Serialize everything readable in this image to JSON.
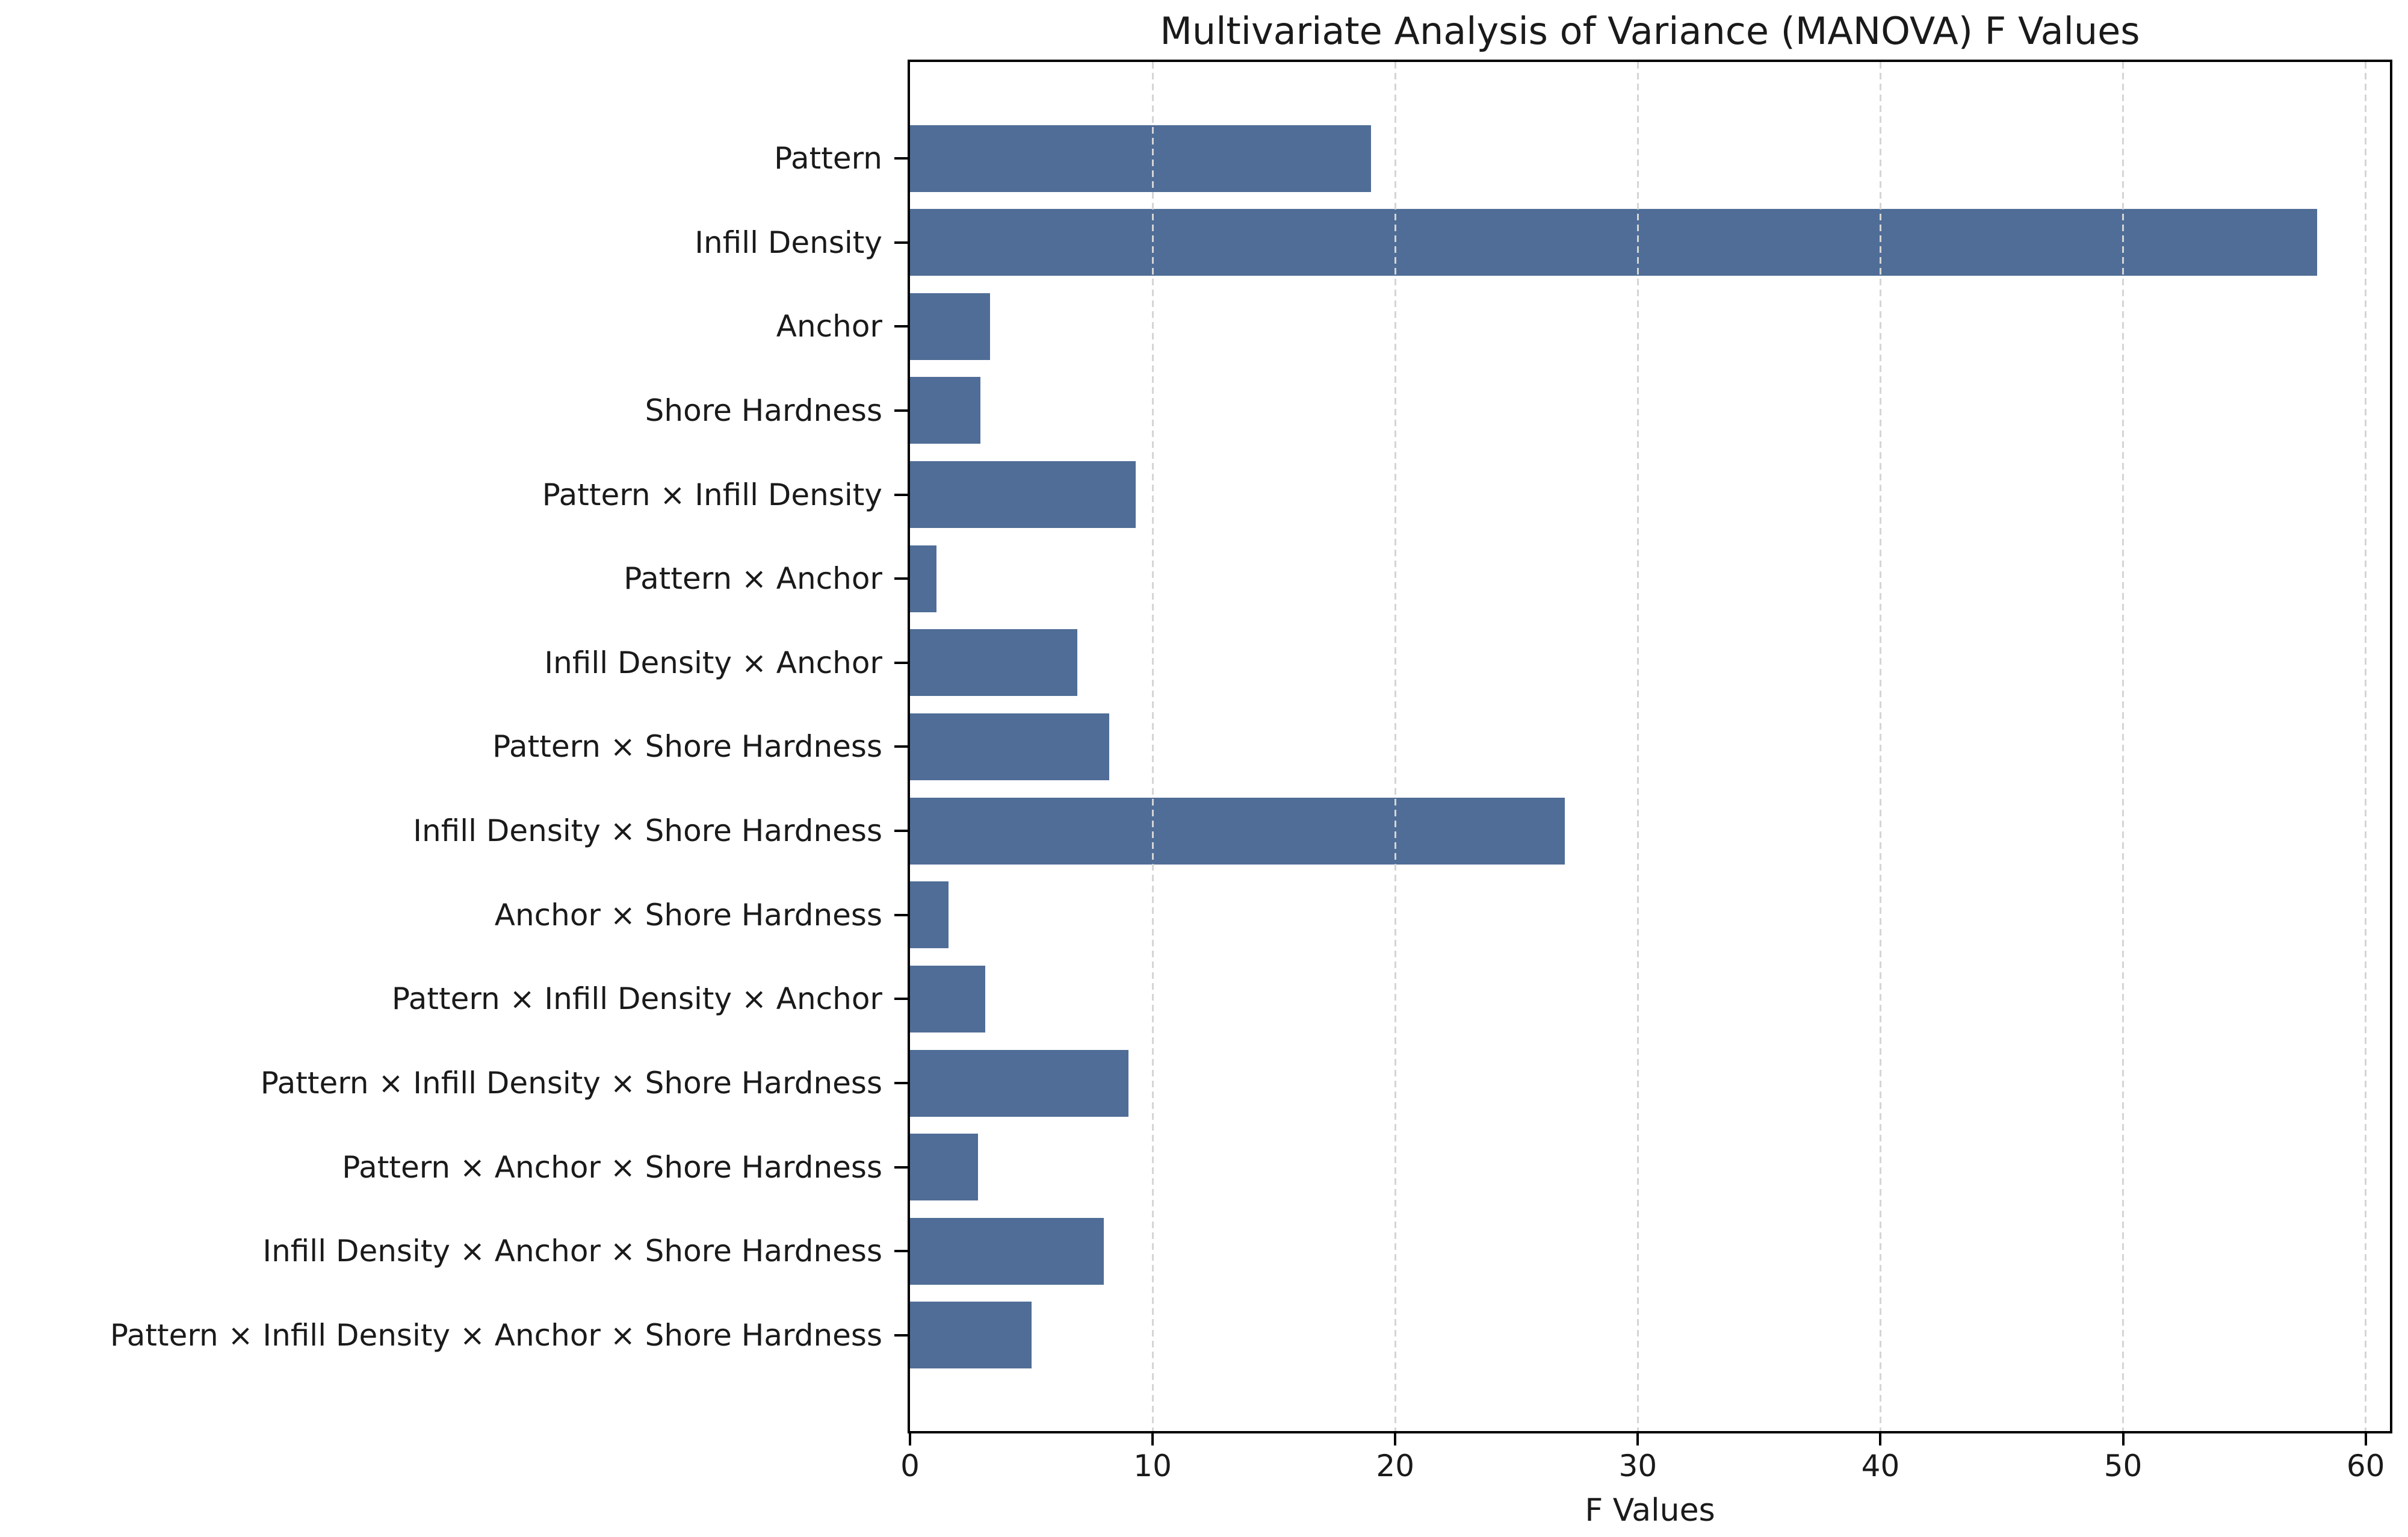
{
  "chart_data": {
    "type": "bar",
    "orientation": "horizontal",
    "title": "Multivariate Analysis of Variance (MANOVA) F Values",
    "xlabel": "F Values",
    "ylabel": "",
    "categories": [
      "Pattern",
      "Infill Density",
      "Anchor",
      "Shore Hardness",
      "Pattern × Infill Density",
      "Pattern × Anchor",
      "Infill Density × Anchor",
      "Pattern × Shore Hardness",
      "Infill Density × Shore Hardness",
      "Anchor × Shore Hardness",
      "Pattern × Infill Density × Anchor",
      "Pattern × Infill Density × Shore Hardness",
      "Pattern × Anchor × Shore Hardness",
      "Infill Density × Anchor × Shore Hardness",
      "Pattern × Infill Density × Anchor × Shore Hardness"
    ],
    "values": [
      19.0,
      58.0,
      3.3,
      2.9,
      9.3,
      1.1,
      6.9,
      8.2,
      27.0,
      1.6,
      3.1,
      9.0,
      2.8,
      8.0,
      5.0
    ],
    "xlim": [
      0,
      61
    ],
    "xticks": [
      0,
      10,
      20,
      30,
      40,
      50,
      60
    ],
    "grid": "vertical-dashed-on-top",
    "legend": "none",
    "bar_color": "#4f6d96",
    "grid_color": "#d5d5d5",
    "spine_color": "#000000",
    "text_color": "#1a1a1a"
  }
}
